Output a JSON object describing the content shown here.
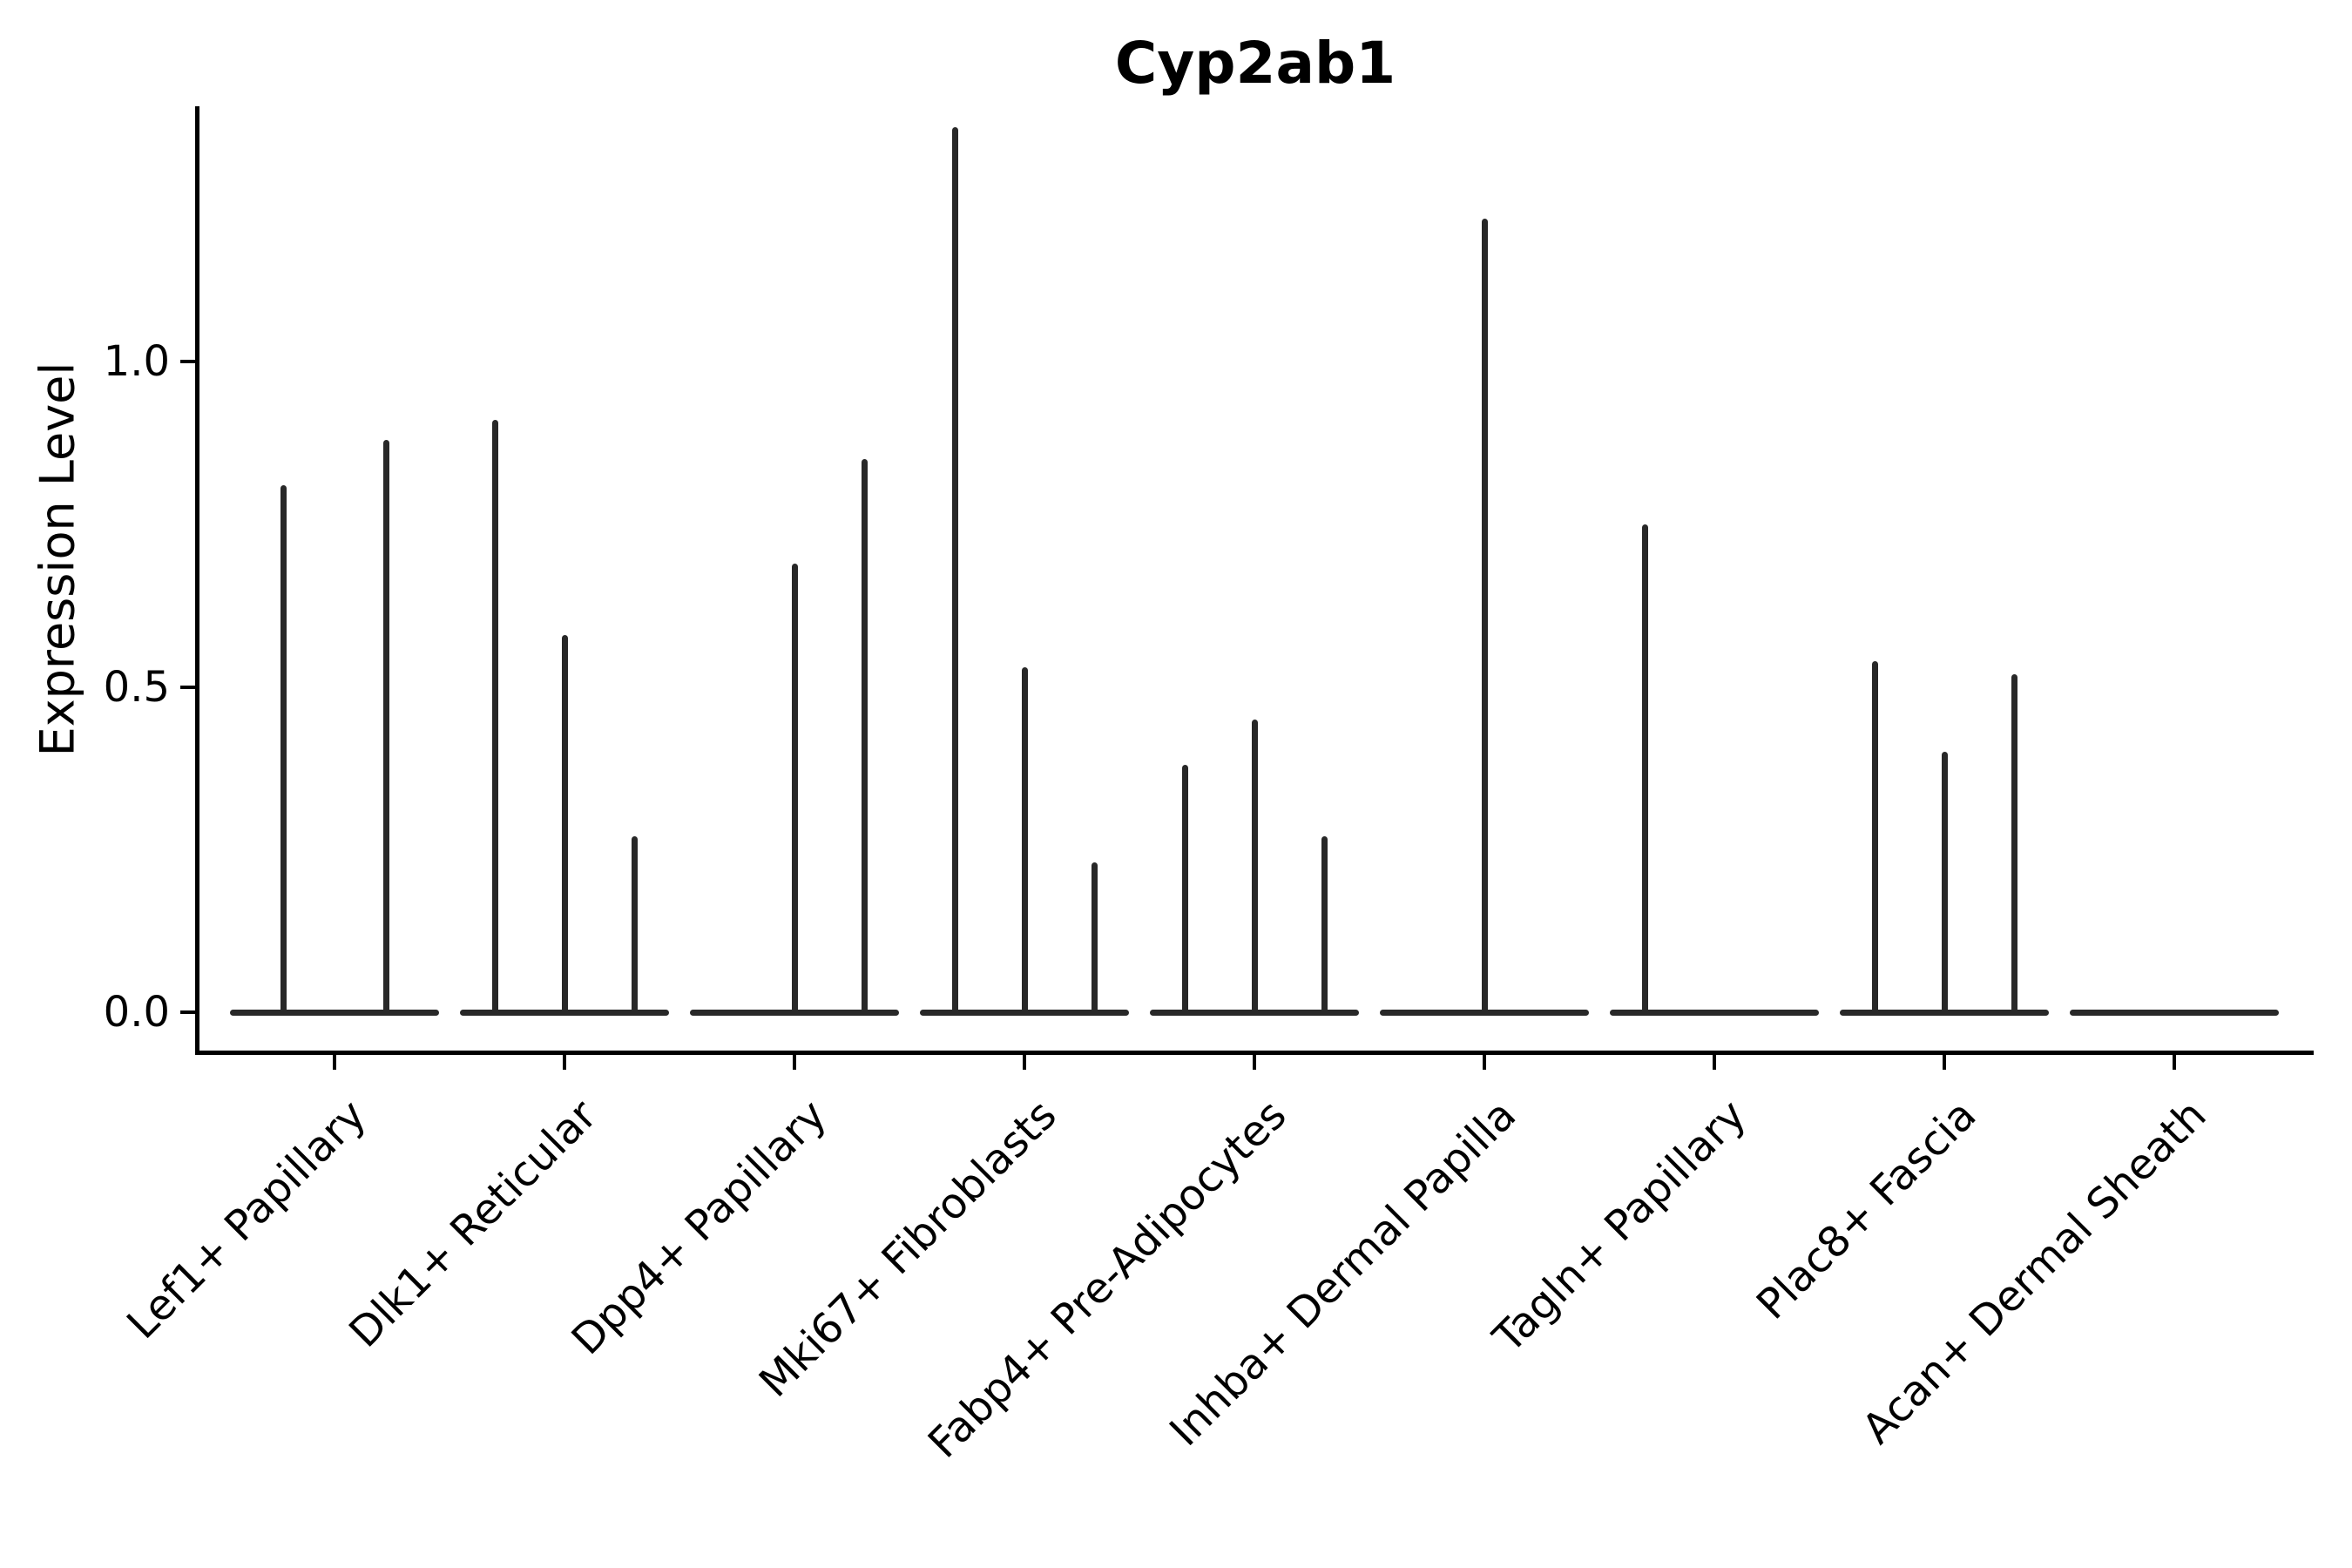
{
  "chart_data": {
    "type": "violin",
    "title": "Cyp2ab1",
    "ylabel": "Expression Level",
    "xlabel": "",
    "grid": false,
    "legend": "none",
    "background_color": "#ffffff",
    "axis_color": "#000000",
    "violin_color": "#282828",
    "ylim": [
      -0.06,
      1.39
    ],
    "yticks": {
      "values": [
        0.0,
        0.5,
        1.0
      ],
      "labels": [
        "0.0",
        "0.5",
        "1.0"
      ]
    },
    "categories": [
      "Lef1+ Papillary",
      "Dlk1+ Reticular",
      "Dpp4+ Papillary",
      "Mki67+ Fibroblasts",
      "Fabp4+ Pre-Adipocytes",
      "Inhba+ Dermal Papilla",
      "Tagln+ Papillary",
      "Plac8+ Fascia",
      "Acan+ Dermal Sheath"
    ],
    "violins": [
      {
        "category": "Lef1+ Papillary",
        "spikes": [
          {
            "dx": -59,
            "peak": 0.81
          },
          {
            "dx": 59,
            "peak": 0.88
          }
        ]
      },
      {
        "category": "Dlk1+ Reticular",
        "spikes": [
          {
            "dx": -80,
            "peak": 0.91
          },
          {
            "dx": 0,
            "peak": 0.58
          },
          {
            "dx": 80,
            "peak": 0.27
          }
        ]
      },
      {
        "category": "Dpp4+ Papillary",
        "spikes": [
          {
            "dx": 0,
            "peak": 0.69
          },
          {
            "dx": 80,
            "peak": 0.85
          }
        ]
      },
      {
        "category": "Mki67+ Fibroblasts",
        "spikes": [
          {
            "dx": -80,
            "peak": 1.36
          },
          {
            "dx": 0,
            "peak": 0.53
          },
          {
            "dx": 80,
            "peak": 0.23
          }
        ]
      },
      {
        "category": "Fabp4+ Pre-Adipocytes",
        "spikes": [
          {
            "dx": -80,
            "peak": 0.38
          },
          {
            "dx": 0,
            "peak": 0.45
          },
          {
            "dx": 80,
            "peak": 0.27
          }
        ]
      },
      {
        "category": "Inhba+ Dermal Papilla",
        "spikes": [
          {
            "dx": 0,
            "peak": 1.22
          }
        ]
      },
      {
        "category": "Tagln+ Papillary",
        "spikes": [
          {
            "dx": -80,
            "peak": 0.75
          }
        ]
      },
      {
        "category": "Plac8+ Fascia",
        "spikes": [
          {
            "dx": -80,
            "peak": 0.54
          },
          {
            "dx": 0,
            "peak": 0.4
          },
          {
            "dx": 80,
            "peak": 0.52
          }
        ]
      },
      {
        "category": "Acan+ Dermal Sheath",
        "spikes": []
      }
    ]
  }
}
